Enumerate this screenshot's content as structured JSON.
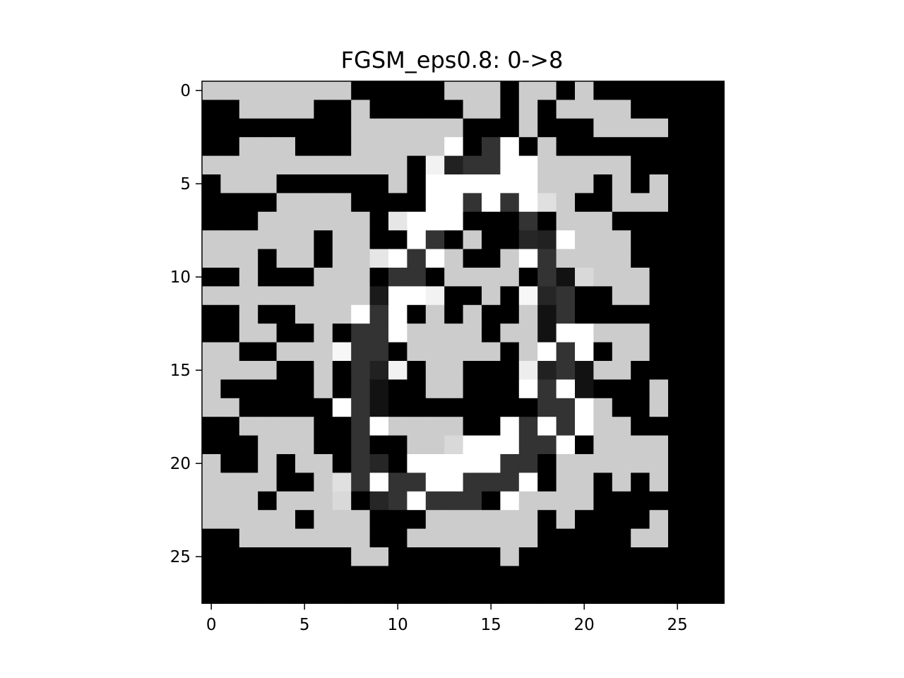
{
  "chart_data": {
    "type": "heatmap",
    "title": "FGSM_eps0.8: 0->8",
    "xlabel": "",
    "ylabel": "",
    "colormap": "gray",
    "vmin": 0,
    "vmax": 1,
    "xticks": [
      0,
      5,
      10,
      15,
      20,
      25
    ],
    "yticks": [
      0,
      5,
      10,
      15,
      20,
      25
    ],
    "xlim": [
      -0.5,
      27.5
    ],
    "ylim": [
      27.5,
      -0.5
    ],
    "grid": false,
    "values": [
      [
        0.8,
        0.8,
        0.8,
        0.8,
        0.8,
        0.8,
        0.8,
        0.8,
        0,
        0,
        0,
        0,
        0,
        0.8,
        0.8,
        0.8,
        0,
        0.8,
        0.8,
        0,
        0.8,
        0,
        0,
        0,
        0,
        0,
        0,
        0
      ],
      [
        0,
        0,
        0.8,
        0.8,
        0.8,
        0.8,
        0,
        0,
        0.8,
        0,
        0,
        0,
        0,
        0,
        0.8,
        0.8,
        0,
        0.8,
        0,
        0.8,
        0.8,
        0.8,
        0.8,
        0,
        0,
        0,
        0,
        0
      ],
      [
        0,
        0,
        0,
        0,
        0,
        0,
        0,
        0,
        0.8,
        0.8,
        0.8,
        0.8,
        0.8,
        0.8,
        0,
        0,
        0,
        0.8,
        0,
        0,
        0,
        0.8,
        0.8,
        0.8,
        0.8,
        0,
        0,
        0
      ],
      [
        0,
        0,
        0.8,
        0.8,
        0.8,
        0,
        0,
        0,
        0.8,
        0.8,
        0.8,
        0.8,
        0.8,
        1,
        0,
        0.2,
        1,
        0,
        0.8,
        0,
        0,
        0,
        0,
        0,
        0,
        0,
        0,
        0
      ],
      [
        0.8,
        0.8,
        0.8,
        0.8,
        0.8,
        0.8,
        0.8,
        0.8,
        0.8,
        0.8,
        0.8,
        0,
        0.95,
        0.13,
        0.2,
        0.2,
        1,
        1,
        0.8,
        0.8,
        0.8,
        0.8,
        0.8,
        0,
        0,
        0,
        0,
        0
      ],
      [
        0,
        0.8,
        0.8,
        0.8,
        0,
        0,
        0,
        0,
        0,
        0,
        0.8,
        0,
        1,
        1,
        1,
        1,
        1,
        1,
        0.8,
        0.8,
        0.8,
        0,
        0.8,
        0,
        0.8,
        0,
        0,
        0
      ],
      [
        0,
        0,
        0,
        0,
        0.8,
        0.8,
        0.8,
        0.8,
        0,
        0,
        0,
        0,
        1,
        1,
        0.2,
        1,
        0.2,
        1,
        0.88,
        0.8,
        0,
        0,
        0.8,
        0.8,
        0.8,
        0,
        0,
        0
      ],
      [
        0,
        0,
        0,
        0.8,
        0.8,
        0.8,
        0.8,
        0.8,
        0.8,
        0,
        0.9,
        1,
        1,
        1,
        0,
        0,
        0,
        0.2,
        0,
        0.8,
        0.8,
        0.8,
        0,
        0,
        0,
        0,
        0,
        0
      ],
      [
        0.8,
        0.8,
        0.8,
        0.8,
        0.8,
        0.8,
        0,
        0.8,
        0.8,
        0,
        0,
        1,
        0.2,
        0,
        0.8,
        0,
        0,
        0.15,
        0.13,
        1,
        0.8,
        0.8,
        0.8,
        0,
        0,
        0,
        0,
        0
      ],
      [
        0.8,
        0.8,
        0.8,
        0,
        0.8,
        0.8,
        0,
        0.8,
        0.8,
        0.9,
        1,
        0.2,
        1,
        0.8,
        0,
        0,
        0.8,
        1,
        0.2,
        0.8,
        0.8,
        0.8,
        0.8,
        0,
        0,
        0,
        0,
        0
      ],
      [
        0,
        0,
        0.8,
        0,
        0,
        0,
        0.8,
        0.8,
        0.8,
        0,
        0.2,
        0.2,
        0,
        0.8,
        0.8,
        0.8,
        0.8,
        0,
        0.2,
        0.07,
        0.85,
        0.8,
        0.8,
        0.8,
        0,
        0,
        0,
        0
      ],
      [
        0.8,
        0.8,
        0.8,
        0.8,
        0.8,
        0.8,
        0.8,
        0.8,
        0.8,
        0.1,
        1,
        1,
        0.95,
        0,
        0,
        0.8,
        0,
        0.97,
        0.15,
        0.2,
        0,
        0,
        0.8,
        0.8,
        0,
        0,
        0,
        0
      ],
      [
        0,
        0,
        0.8,
        0,
        0,
        0.8,
        0.8,
        0.8,
        1,
        0.2,
        1,
        0,
        0.8,
        0,
        0.8,
        0,
        0,
        0.8,
        0.07,
        0.2,
        0,
        0,
        0,
        0,
        0,
        0,
        0,
        0
      ],
      [
        0,
        0,
        0.8,
        0.8,
        0,
        0,
        0.8,
        0,
        0.2,
        0.2,
        1,
        0.8,
        0.8,
        0.8,
        0.8,
        0,
        0.8,
        0.8,
        0.07,
        1,
        1,
        0.8,
        0.8,
        0.8,
        0,
        0,
        0,
        0
      ],
      [
        0.8,
        0.8,
        0,
        0,
        0.8,
        0.8,
        0.8,
        0.97,
        0.2,
        0.2,
        0,
        0.8,
        0.8,
        0.8,
        0.8,
        0.8,
        0,
        0.8,
        1,
        0.2,
        1,
        0,
        0.8,
        0.8,
        0,
        0,
        0,
        0
      ],
      [
        0.8,
        0.8,
        0.8,
        0.8,
        0,
        0,
        0.8,
        0,
        0.2,
        0.13,
        0.95,
        0,
        0.8,
        0.8,
        0,
        0,
        0,
        0.93,
        0.13,
        0.2,
        0.07,
        0.8,
        0.8,
        0,
        0,
        0,
        0,
        0
      ],
      [
        0.8,
        0,
        0,
        0,
        0,
        0,
        0.8,
        0,
        0.2,
        0.07,
        0,
        0,
        0.8,
        0.8,
        0,
        0,
        0,
        1,
        0.2,
        1,
        0.07,
        0,
        0,
        0,
        0.8,
        0,
        0,
        0
      ],
      [
        0.8,
        0.8,
        0,
        0,
        0,
        0,
        0,
        1,
        0.2,
        0.07,
        0,
        0,
        0,
        0,
        0,
        0,
        0,
        0,
        0.2,
        0.2,
        1,
        0.8,
        0,
        0,
        0.8,
        0,
        0,
        0
      ],
      [
        0,
        0,
        0.8,
        0.8,
        0.8,
        0.8,
        0,
        0,
        0.2,
        1,
        0.8,
        0.8,
        0.8,
        0.8,
        0,
        0,
        1,
        0.2,
        1,
        0.2,
        1,
        0.8,
        0.8,
        0,
        0,
        0,
        0,
        0
      ],
      [
        0,
        0,
        0,
        0.8,
        0.8,
        0.8,
        0,
        0,
        0.2,
        0,
        0,
        0.8,
        0.8,
        0.85,
        1,
        1,
        1,
        0.2,
        0.2,
        1,
        0,
        0.8,
        0.8,
        0.8,
        0.8,
        0,
        0,
        0
      ],
      [
        0.8,
        0,
        0,
        0.8,
        0,
        0.8,
        0.8,
        0,
        0.2,
        0.15,
        0,
        1,
        1,
        1,
        1,
        1,
        0.2,
        0.2,
        0,
        0.8,
        0.8,
        0.8,
        0.8,
        0.8,
        0.8,
        0,
        0,
        0
      ],
      [
        0.8,
        0.8,
        0.8,
        0.8,
        0,
        0,
        0.8,
        0.88,
        0.2,
        1,
        0.2,
        0.2,
        1,
        1,
        0.2,
        0.2,
        0.2,
        1,
        0,
        0.8,
        0.8,
        0,
        0.8,
        0,
        0.8,
        0,
        0,
        0
      ],
      [
        0.8,
        0.8,
        0.8,
        0,
        0.8,
        0.8,
        0.8,
        0.85,
        0,
        0.15,
        0.2,
        1,
        0.2,
        0.2,
        0.2,
        0,
        1,
        0.8,
        0.8,
        0.8,
        0.8,
        0,
        0,
        0,
        0,
        0,
        0,
        0
      ],
      [
        0.8,
        0.8,
        0.8,
        0.8,
        0.8,
        0,
        0.8,
        0.8,
        0.8,
        0,
        0,
        0,
        0.8,
        0.8,
        0.8,
        0.8,
        0.8,
        0.8,
        0,
        0.8,
        0,
        0,
        0,
        0,
        0.8,
        0,
        0,
        0
      ],
      [
        0,
        0,
        0.8,
        0.8,
        0.8,
        0.8,
        0.8,
        0.8,
        0.8,
        0,
        0,
        0.8,
        0.8,
        0.8,
        0.8,
        0.8,
        0.8,
        0.8,
        0,
        0,
        0,
        0,
        0,
        0.8,
        0.8,
        0,
        0,
        0
      ],
      [
        0,
        0,
        0,
        0,
        0,
        0,
        0,
        0,
        0.8,
        0.8,
        0,
        0,
        0,
        0,
        0,
        0,
        0.8,
        0,
        0,
        0,
        0,
        0,
        0,
        0,
        0,
        0,
        0,
        0
      ],
      [
        0,
        0,
        0,
        0,
        0,
        0,
        0,
        0,
        0,
        0,
        0,
        0,
        0,
        0,
        0,
        0,
        0,
        0,
        0,
        0,
        0,
        0,
        0,
        0,
        0,
        0,
        0,
        0
      ],
      [
        0,
        0,
        0,
        0,
        0,
        0,
        0,
        0,
        0,
        0,
        0,
        0,
        0,
        0,
        0,
        0,
        0,
        0,
        0,
        0,
        0,
        0,
        0,
        0,
        0,
        0,
        0,
        0
      ]
    ]
  }
}
